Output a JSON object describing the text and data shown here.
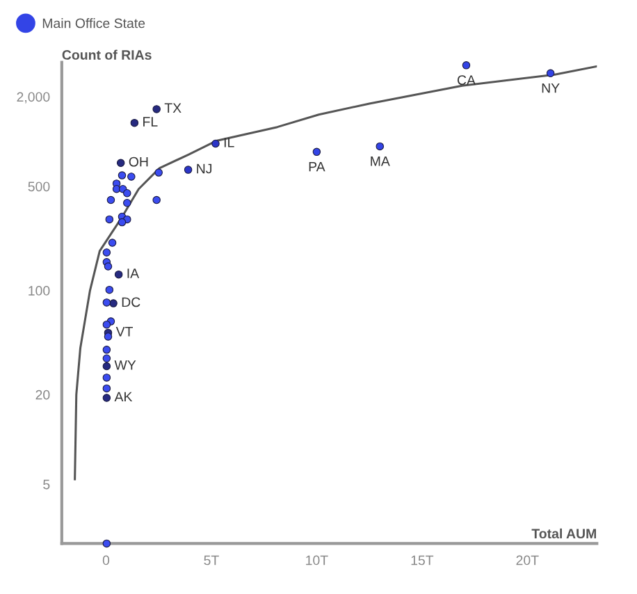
{
  "chart_data": {
    "type": "scatter",
    "xlabel": "Total AUM",
    "ylabel": "Count of RIAs",
    "log": "y",
    "xlim": [
      -2.1,
      23.3
    ],
    "ylim": [
      2,
      3400
    ],
    "xticks": [
      0,
      {
        "value": 5,
        "label": "5T"
      },
      {
        "value": 10,
        "label": "10T"
      },
      {
        "value": 15,
        "label": "15T"
      },
      {
        "value": 20,
        "label": "20T"
      }
    ],
    "yticks": [
      5,
      20,
      100,
      500,
      {
        "value": 2000,
        "label": "2,000"
      }
    ],
    "grid": false,
    "legend": "top left",
    "series": [
      {
        "name": "Main Office State",
        "marker": "circle",
        "color": "#3344e6",
        "x": [
          2.4,
          1.35,
          0.7,
          5.2,
          3.9,
          10.0,
          13.0,
          17.1,
          21.1,
          0.6,
          0.35,
          0.1,
          0.03,
          0.03,
          0.76,
          1.2,
          0.5,
          0.5,
          0.8,
          1.0,
          0.23,
          1.0,
          2.5,
          2.4,
          0.16,
          0.76,
          1.0,
          0.76,
          0.3,
          0.03,
          0.03,
          0.1,
          0.16,
          0.03,
          0.23,
          0.03,
          0.1,
          0.03,
          0.03,
          0.03,
          0.03,
          0.03
        ],
        "values": [
          1650,
          1334,
          718,
          968,
          646,
          852,
          928,
          3250,
          2874,
          128,
          82,
          52,
          31,
          19,
          593,
          581,
          522,
          480,
          480,
          450,
          405,
          387,
          619,
          405,
          300,
          313,
          300,
          287,
          209,
          180,
          155,
          145,
          101,
          83,
          62,
          59,
          49,
          40,
          35,
          26,
          22,
          2
        ],
        "colors": [
          "#262a80",
          "#262a80",
          "#262a80",
          "#2b35c8",
          "#2b35c8",
          "#3344e6",
          "#3344e6",
          "#3344e6",
          "#3344e6",
          "#262a80",
          "#262a80",
          "#262a80",
          "#262a80",
          "#262a80",
          "#3b4cf0",
          "#3b4cf0",
          "#3b4cf0",
          "#3b4cf0",
          "#3b4cf0",
          "#3b4cf0",
          "#3b4cf0",
          "#3b4cf0",
          "#3b4cf0",
          "#3b4cf0",
          "#3b4cf0",
          "#3b4cf0",
          "#3b4cf0",
          "#3b4cf0",
          "#3b4cf0",
          "#3b4cf0",
          "#3b4cf0",
          "#3b4cf0",
          "#3b4cf0",
          "#3b4cf0",
          "#3b4cf0",
          "#3b4cf0",
          "#3b4cf0",
          "#3b4cf0",
          "#3b4cf0",
          "#3b4cf0",
          "#3b4cf0",
          "#3b4cf0"
        ]
      },
      {
        "type": "line",
        "color": "#555555",
        "x": [
          -1.48,
          -1.41,
          -1.22,
          -0.76,
          -0.3,
          0.69,
          1.55,
          2.53,
          3.91,
          5.23,
          8.13,
          10.1,
          12.5,
          16.9,
          21.3,
          23.3
        ],
        "values": [
          5.4,
          20,
          41,
          100,
          184,
          300,
          480,
          661,
          817,
          1010,
          1251,
          1516,
          1798,
          2372,
          2812,
          3198
        ]
      }
    ],
    "annotations": [
      {
        "text": "TX",
        "x": 2.4,
        "y": 1650
      },
      {
        "text": "FL",
        "x": 1.35,
        "y": 1334
      },
      {
        "text": "OH",
        "x": 0.7,
        "y": 718
      },
      {
        "text": "IL",
        "x": 5.2,
        "y": 968
      },
      {
        "text": "NJ",
        "x": 3.9,
        "y": 646
      },
      {
        "text": "PA",
        "x": 10.0,
        "y": 852
      },
      {
        "text": "MA",
        "x": 13.0,
        "y": 928
      },
      {
        "text": "CA",
        "x": 17.1,
        "y": 3250
      },
      {
        "text": "NY",
        "x": 21.1,
        "y": 2874
      },
      {
        "text": "IA",
        "x": 0.6,
        "y": 128
      },
      {
        "text": "DC",
        "x": 0.35,
        "y": 82
      },
      {
        "text": "VT",
        "x": 0.1,
        "y": 52
      },
      {
        "text": "WY",
        "x": 0.03,
        "y": 31
      },
      {
        "text": "AK",
        "x": 0.03,
        "y": 19
      }
    ]
  }
}
